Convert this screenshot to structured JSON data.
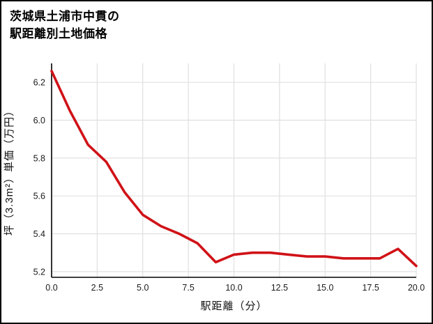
{
  "title": {
    "line1": "茨城県土浦市中貫の",
    "line2": "駅距離別土地価格"
  },
  "chart_data": {
    "type": "line",
    "title": "茨城県土浦市中貫の駅距離別土地価格",
    "xlabel": "駅距離（分）",
    "ylabel": "坪（3.3m²）単価（万円）",
    "x": [
      0,
      1,
      2,
      3,
      4,
      5,
      6,
      7,
      8,
      9,
      10,
      11,
      12,
      13,
      14,
      15,
      16,
      17,
      18,
      19,
      20
    ],
    "y": [
      6.26,
      6.05,
      5.87,
      5.78,
      5.62,
      5.5,
      5.44,
      5.4,
      5.35,
      5.25,
      5.29,
      5.3,
      5.3,
      5.29,
      5.28,
      5.28,
      5.27,
      5.27,
      5.27,
      5.32,
      5.23
    ],
    "xlim": [
      0,
      20
    ],
    "ylim": [
      5.17,
      6.3
    ],
    "xticks": [
      0.0,
      2.5,
      5.0,
      7.5,
      10.0,
      12.5,
      15.0,
      17.5,
      20.0
    ],
    "yticks": [
      5.2,
      5.4,
      5.6,
      5.8,
      6.0,
      6.2
    ],
    "tick_decimals": 1,
    "grid": true,
    "legend_position": "none",
    "colors": {
      "line": "#d01217",
      "grid": "#e0e0e0",
      "axis": "#000000",
      "text": "#1a1a1a"
    }
  }
}
